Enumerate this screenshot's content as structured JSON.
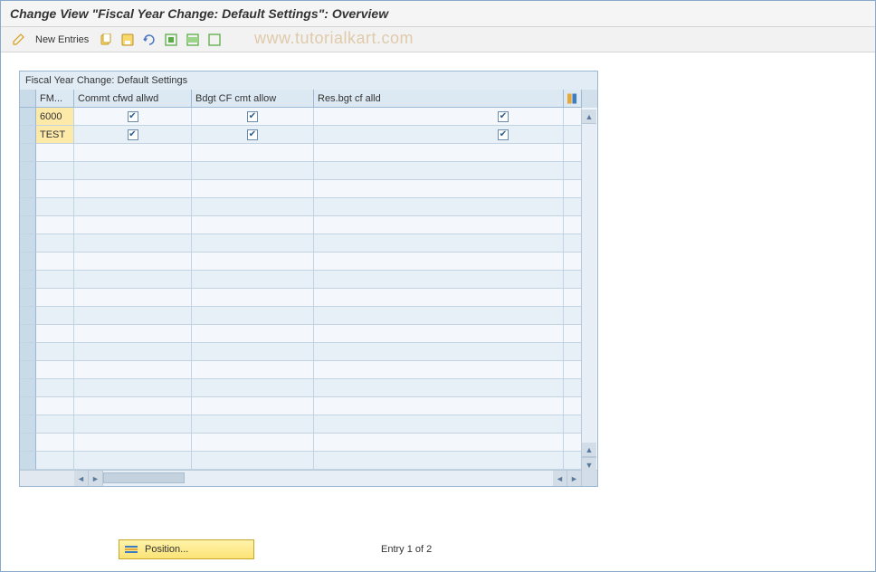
{
  "title": "Change View \"Fiscal Year Change: Default Settings\": Overview",
  "toolbar": {
    "new_entries_label": "New Entries"
  },
  "watermark": "www.tutorialkart.com",
  "grid": {
    "title": "Fiscal Year Change: Default Settings",
    "columns": {
      "fm": "FM...",
      "c1": "Commt cfwd allwd",
      "c2": "Bdgt CF cmt allow",
      "c3": "Res.bgt cf alld"
    },
    "rows": [
      {
        "fm": "6000",
        "c1": true,
        "c2": true,
        "c3": true
      },
      {
        "fm": "TEST",
        "c1": true,
        "c2": true,
        "c3": true
      }
    ],
    "empty_rows": 18
  },
  "footer": {
    "position_label": "Position...",
    "entry_text": "Entry 1 of 2"
  },
  "colors": {
    "header_bg": "#dce8f2",
    "row_odd": "#f4f8fc",
    "row_even": "#e8f0f7",
    "fm_bg": "#fde9a8",
    "border": "#9db8d2",
    "position_btn": "#fbe376"
  }
}
